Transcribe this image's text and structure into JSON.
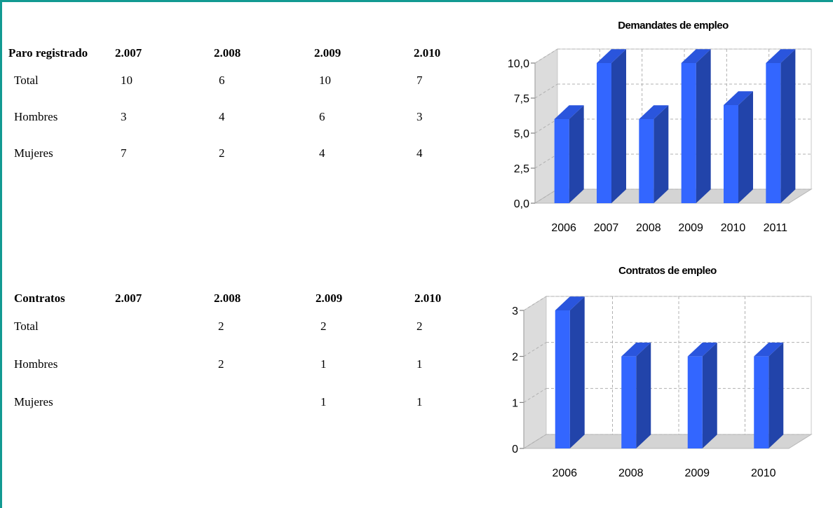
{
  "tables": {
    "paro": {
      "headers": [
        "Paro registrado",
        "2.007",
        "2.008",
        "2.009",
        "2.010"
      ],
      "rows": [
        {
          "label": "Total",
          "cells": [
            "10",
            "6",
            "10",
            "7"
          ]
        },
        {
          "label": "Hombres",
          "cells": [
            "3",
            "4",
            "6",
            "3"
          ]
        },
        {
          "label": "Mujeres",
          "cells": [
            "7",
            "2",
            "4",
            "4"
          ]
        }
      ]
    },
    "contratos": {
      "headers": [
        "Contratos",
        "2.007",
        "2.008",
        "2.009",
        "2.010"
      ],
      "rows": [
        {
          "label": "Total",
          "cells": [
            "",
            "2",
            "2",
            "2"
          ]
        },
        {
          "label": "Hombres",
          "cells": [
            "",
            "2",
            "1",
            "1"
          ]
        },
        {
          "label": "Mujeres",
          "cells": [
            "",
            "",
            "1",
            "1"
          ]
        }
      ]
    }
  },
  "chart_data": [
    {
      "type": "bar",
      "title": "Demandates de empleo",
      "categories": [
        "2006",
        "2007",
        "2008",
        "2009",
        "2010",
        "2011"
      ],
      "values": [
        6,
        10,
        6,
        10,
        7,
        10
      ],
      "ylim": [
        0,
        10
      ],
      "yticks": [
        "0,0",
        "2,5",
        "5,0",
        "7,5",
        "10,0"
      ],
      "grid": true,
      "style": "3d",
      "colors": {
        "front": "#3366ff",
        "side": "#2244aa",
        "top": "#2a55dd"
      }
    },
    {
      "type": "bar",
      "title": "Contratos de empleo",
      "categories": [
        "2006",
        "2008",
        "2009",
        "2010"
      ],
      "values": [
        3,
        2,
        2,
        2
      ],
      "ylim": [
        0,
        3
      ],
      "yticks": [
        "0",
        "1",
        "2",
        "3"
      ],
      "grid": true,
      "style": "3d",
      "colors": {
        "front": "#3366ff",
        "side": "#2244aa",
        "top": "#2a55dd"
      }
    }
  ]
}
